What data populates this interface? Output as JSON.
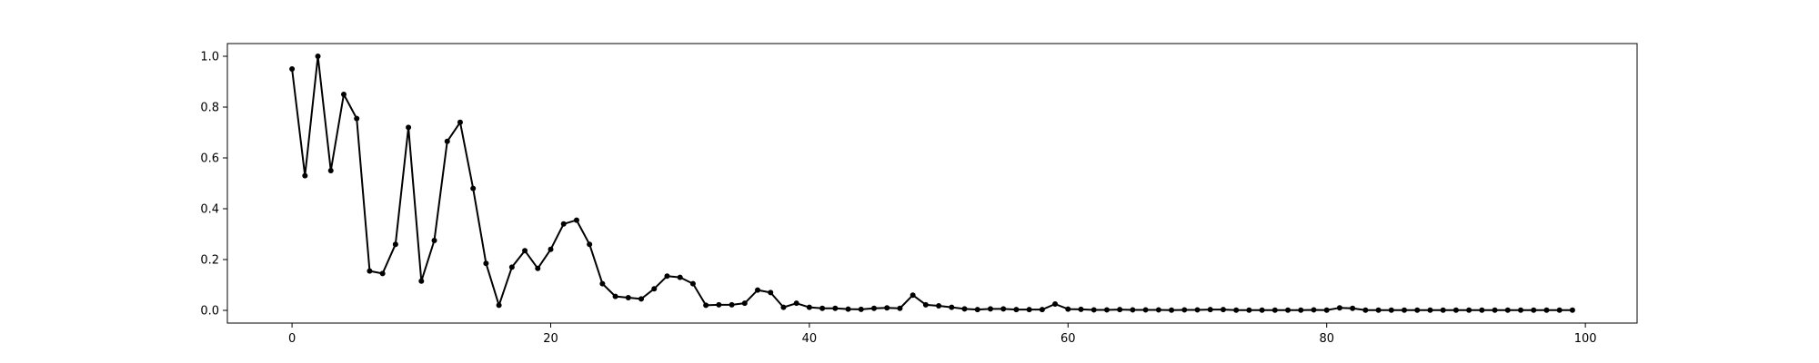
{
  "chart_data": {
    "type": "line",
    "title": "",
    "xlabel": "",
    "ylabel": "",
    "xlim": [
      -5,
      104
    ],
    "ylim": [
      -0.05,
      1.05
    ],
    "grid": false,
    "x_ticks": [
      0,
      20,
      40,
      60,
      80,
      100
    ],
    "x_tick_labels": [
      "0",
      "20",
      "40",
      "60",
      "80",
      "100"
    ],
    "y_ticks": [
      0.0,
      0.2,
      0.4,
      0.6,
      0.8,
      1.0
    ],
    "y_tick_labels": [
      "0.0",
      "0.2",
      "0.4",
      "0.6",
      "0.8",
      "1.0"
    ],
    "series": [
      {
        "color": "#000000",
        "marker": "dot",
        "x": [
          0,
          1,
          2,
          3,
          4,
          5,
          6,
          7,
          8,
          9,
          10,
          11,
          12,
          13,
          14,
          15,
          16,
          17,
          18,
          19,
          20,
          21,
          22,
          23,
          24,
          25,
          26,
          27,
          28,
          29,
          30,
          31,
          32,
          33,
          34,
          35,
          36,
          37,
          38,
          39,
          40,
          41,
          42,
          43,
          44,
          45,
          46,
          47,
          48,
          49,
          50,
          51,
          52,
          53,
          54,
          55,
          56,
          57,
          58,
          59,
          60,
          61,
          62,
          63,
          64,
          65,
          66,
          67,
          68,
          69,
          70,
          71,
          72,
          73,
          74,
          75,
          76,
          77,
          78,
          79,
          80,
          81,
          82,
          83,
          84,
          85,
          86,
          87,
          88,
          89,
          90,
          91,
          92,
          93,
          94,
          95,
          96,
          97,
          98,
          99
        ],
        "y": [
          0.95,
          0.53,
          1.0,
          0.55,
          0.85,
          0.755,
          0.155,
          0.145,
          0.26,
          0.72,
          0.115,
          0.275,
          0.665,
          0.74,
          0.48,
          0.185,
          0.02,
          0.17,
          0.235,
          0.165,
          0.24,
          0.34,
          0.355,
          0.26,
          0.105,
          0.055,
          0.05,
          0.045,
          0.085,
          0.135,
          0.13,
          0.105,
          0.02,
          0.022,
          0.022,
          0.028,
          0.08,
          0.07,
          0.012,
          0.028,
          0.012,
          0.008,
          0.008,
          0.005,
          0.004,
          0.008,
          0.01,
          0.008,
          0.06,
          0.022,
          0.018,
          0.012,
          0.006,
          0.003,
          0.006,
          0.006,
          0.003,
          0.003,
          0.003,
          0.025,
          0.005,
          0.004,
          0.002,
          0.002,
          0.003,
          0.002,
          0.002,
          0.002,
          0.001,
          0.002,
          0.002,
          0.003,
          0.003,
          0.001,
          0.001,
          0.001,
          0.001,
          0.001,
          0.001,
          0.002,
          0.001,
          0.01,
          0.008,
          0.001,
          0.001,
          0.001,
          0.001,
          0.001,
          0.001,
          0.001,
          0.001,
          0.001,
          0.001,
          0.001,
          0.001,
          0.001,
          0.001,
          0.001,
          0.001,
          0.001
        ]
      }
    ]
  }
}
